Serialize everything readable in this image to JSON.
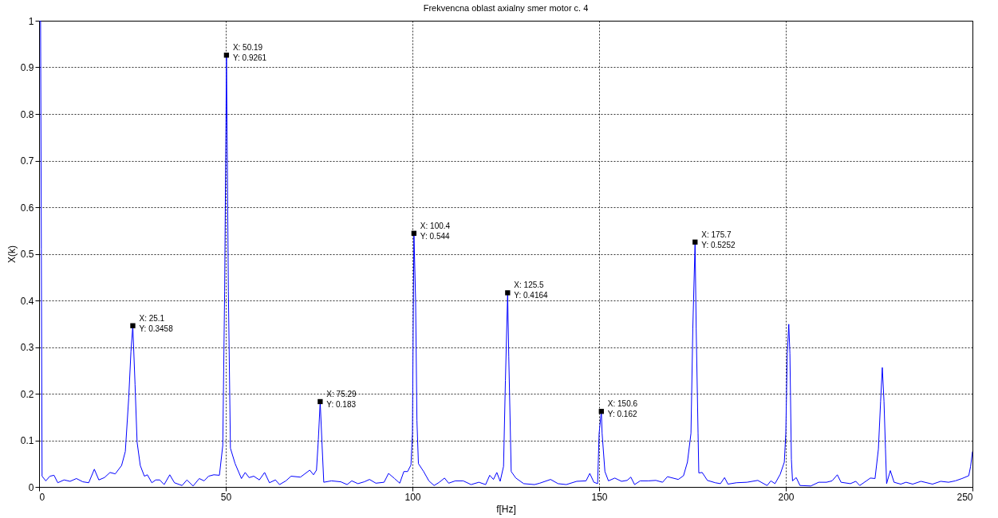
{
  "chart_data": {
    "type": "line",
    "title": "Frekvencna oblast axialny smer motor c. 4",
    "xlabel": "f[Hz]",
    "ylabel": "X(k)",
    "xlim": [
      0,
      250
    ],
    "xticks": [
      0,
      50,
      100,
      150,
      200,
      250
    ],
    "ylim": [
      0,
      1
    ],
    "yticks": [
      0,
      0.1,
      0.2,
      0.3,
      0.4,
      0.5,
      0.6,
      0.7,
      0.8,
      0.9,
      1
    ],
    "grid": true,
    "series": [
      {
        "color": "#0000ff",
        "x": [
          0,
          0.4,
          0.6,
          0.8,
          1.8,
          2.9,
          4,
          5,
          6.7,
          8.3,
          10,
          11.7,
          13.3,
          14.8,
          16,
          17.5,
          19,
          20.4,
          22.1,
          23.1,
          24,
          24.6,
          25.1,
          25.7,
          26.25,
          27.1,
          28.2,
          29,
          30.2,
          31.25,
          32.3,
          33.5,
          35,
          36.25,
          38.3,
          39.6,
          41.25,
          42.9,
          44.2,
          45.4,
          46.8,
          48.3,
          49.2,
          49.7,
          50.19,
          50.7,
          51.25,
          52.5,
          54.2,
          55.2,
          56.25,
          57.5,
          59,
          60.4,
          61.7,
          63.3,
          64.4,
          66.1,
          67.5,
          70,
          72.5,
          73.5,
          74.3,
          74.8,
          75.29,
          75.8,
          76.25,
          78.3,
          80.8,
          82.5,
          83.75,
          85.4,
          87.1,
          88.5,
          90.2,
          92.4,
          93.6,
          95.2,
          96.6,
          97.7,
          98.7,
          99.6,
          100,
          100.2,
          100.4,
          100.85,
          101.2,
          101.6,
          103,
          104.4,
          105.8,
          107.2,
          108.6,
          109.7,
          111.5,
          113.6,
          115.7,
          117.8,
          119.6,
          120.7,
          121.7,
          122.6,
          123.5,
          124.4,
          124.9,
          125.5,
          125.8,
          126.45,
          127.7,
          129.8,
          132.7,
          134.1,
          137,
          139,
          141.2,
          144,
          146.5,
          147.5,
          148.6,
          149.6,
          150,
          150.6,
          150.8,
          151.55,
          152.5,
          154.2,
          156,
          157.5,
          158.5,
          159.5,
          161,
          163.2,
          165.2,
          167,
          168.3,
          171.2,
          172.6,
          173.65,
          174.6,
          175.1,
          175.7,
          176,
          176.5,
          176.7,
          177.6,
          179,
          181.1,
          182.5,
          183.6,
          184.5,
          186.8,
          189.6,
          192.5,
          195,
          196,
          197.1,
          198.5,
          199.6,
          200,
          200.4,
          200.8,
          201.1,
          201.5,
          201.8,
          202.8,
          203.8,
          206.7,
          208.8,
          210.9,
          212.4,
          213.8,
          214.8,
          217.3,
          218.75,
          219.8,
          221.6,
          222.65,
          223.9,
          224.8,
          225.4,
          225.85,
          226.3,
          226.7,
          227,
          228,
          229,
          230.8,
          232.2,
          234,
          236.2,
          239.3,
          241.5,
          243.6,
          245.4,
          247.2,
          249,
          249.5,
          250
        ],
        "values": [
          1,
          1,
          0.51,
          0.023,
          0.013,
          0.023,
          0.025,
          0.009,
          0.015,
          0.012,
          0.018,
          0.011,
          0.009,
          0.038,
          0.015,
          0.02,
          0.031,
          0.028,
          0.046,
          0.076,
          0.19,
          0.29,
          0.3458,
          0.22,
          0.096,
          0.046,
          0.023,
          0.026,
          0.009,
          0.015,
          0.015,
          0.005,
          0.026,
          0.009,
          0.003,
          0.015,
          0.002,
          0.018,
          0.013,
          0.023,
          0.026,
          0.025,
          0.089,
          0.42,
          0.9261,
          0.42,
          0.083,
          0.05,
          0.018,
          0.031,
          0.02,
          0.023,
          0.015,
          0.031,
          0.009,
          0.015,
          0.005,
          0.013,
          0.023,
          0.021,
          0.036,
          0.026,
          0.036,
          0.102,
          0.183,
          0.089,
          0.01,
          0.013,
          0.011,
          0.005,
          0.013,
          0.007,
          0.011,
          0.016,
          0.008,
          0.01,
          0.029,
          0.018,
          0.008,
          0.033,
          0.033,
          0.047,
          0.115,
          0.34,
          0.544,
          0.4,
          0.143,
          0.05,
          0.033,
          0.013,
          0.003,
          0.01,
          0.019,
          0.008,
          0.013,
          0.013,
          0.005,
          0.01,
          0.005,
          0.025,
          0.016,
          0.031,
          0.012,
          0.044,
          0.228,
          0.4164,
          0.28,
          0.033,
          0.019,
          0.007,
          0.005,
          0.008,
          0.016,
          0.007,
          0.005,
          0.012,
          0.013,
          0.029,
          0.01,
          0.007,
          0.115,
          0.162,
          0.115,
          0.033,
          0.013,
          0.019,
          0.012,
          0.014,
          0.021,
          0.005,
          0.013,
          0.013,
          0.014,
          0.01,
          0.022,
          0.016,
          0.024,
          0.053,
          0.115,
          0.34,
          0.5252,
          0.34,
          0.115,
          0.03,
          0.031,
          0.014,
          0.009,
          0.007,
          0.02,
          0.006,
          0.009,
          0.01,
          0.014,
          0.003,
          0.013,
          0.007,
          0.027,
          0.053,
          0.115,
          0.286,
          0.349,
          0.286,
          0.059,
          0.013,
          0.02,
          0.003,
          0.002,
          0.01,
          0.01,
          0.013,
          0.026,
          0.01,
          0.007,
          0.012,
          0.003,
          0.013,
          0.019,
          0.018,
          0.081,
          0.184,
          0.256,
          0.184,
          0.081,
          0.007,
          0.035,
          0.01,
          0.006,
          0.01,
          0.006,
          0.012,
          0.006,
          0.012,
          0.01,
          0.013,
          0.018,
          0.024,
          0.044,
          0.076
        ]
      }
    ],
    "annotations": [
      {
        "text": "X: 25.1\nY: 0.3458",
        "x": 25.1,
        "y": 0.3458
      },
      {
        "text": "X: 50.19\nY: 0.9261",
        "x": 50.19,
        "y": 0.9261
      },
      {
        "text": "X: 75.29\nY: 0.183",
        "x": 75.29,
        "y": 0.183
      },
      {
        "text": "X: 100.4\nY: 0.544",
        "x": 100.4,
        "y": 0.544
      },
      {
        "text": "X: 125.5\nY: 0.4164",
        "x": 125.5,
        "y": 0.4164
      },
      {
        "text": "X: 150.6\nY: 0.162",
        "x": 150.6,
        "y": 0.162
      },
      {
        "text": "X: 175.7\nY: 0.5252",
        "x": 175.7,
        "y": 0.5252
      }
    ]
  }
}
